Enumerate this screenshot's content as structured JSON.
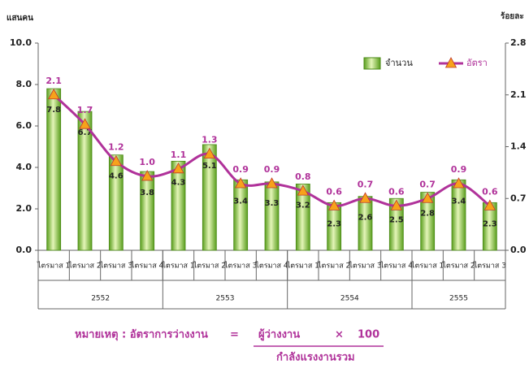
{
  "chart_data": {
    "type": "bar-line",
    "ylabel": "แสนคน",
    "y2label": "ร้อยละ",
    "groups": [
      {
        "name": "2552",
        "categories": [
          "ไตรมาส 1",
          "ไตรมาส 2",
          "ไตรมาส 3",
          "ไตรมาส 4"
        ]
      },
      {
        "name": "2553",
        "categories": [
          "ไตรมาส 1",
          "ไตรมาส 2",
          "ไตรมาส 3",
          "ไตรมาส 4"
        ]
      },
      {
        "name": "2554",
        "categories": [
          "ไตรมาส 1",
          "ไตรมาส 2",
          "ไตรมาส 3",
          "ไตรมาส 4"
        ]
      },
      {
        "name": "2555",
        "categories": [
          "ไตรมาส 1",
          "ไตรมาส 2",
          "ไตรมาส 3"
        ]
      }
    ],
    "series": [
      {
        "name": "จำนวน",
        "type": "bar",
        "color": "#8dc63f",
        "values": [
          7.8,
          6.7,
          4.6,
          3.8,
          4.3,
          5.1,
          3.4,
          3.3,
          3.2,
          2.3,
          2.6,
          2.5,
          2.8,
          3.4,
          2.3
        ]
      },
      {
        "name": "อัตรา",
        "type": "line",
        "axis": "y2",
        "color": "#b0329a",
        "marker_color": "#f7a21b",
        "values": [
          2.1,
          1.7,
          1.2,
          1.0,
          1.1,
          1.3,
          0.9,
          0.9,
          0.8,
          0.6,
          0.7,
          0.6,
          0.7,
          0.9,
          0.6
        ],
        "value_labels": [
          "2.1",
          "1.7",
          "1.2",
          "1.0",
          "1.1",
          "1.3",
          "0.9",
          "0.9",
          "0.8",
          "0.6",
          "0.7",
          "0.6",
          "0.7",
          "0.9",
          "0.6"
        ]
      }
    ],
    "ylim": [
      0,
      10
    ],
    "yticks": [
      {
        "value": 0,
        "label": "0.0"
      },
      {
        "value": 2,
        "label": "2.0"
      },
      {
        "value": 4,
        "label": "4.0"
      },
      {
        "value": 6,
        "label": "6.0"
      },
      {
        "value": 8,
        "label": "8.0"
      },
      {
        "value": 10,
        "label": "10.0"
      }
    ],
    "y2lim": [
      0,
      2.8
    ],
    "y2ticks": [
      {
        "value": 0,
        "label": "0.0"
      },
      0.7,
      1.4,
      2.1,
      2.8
    ],
    "grid": false,
    "legend": "top-right",
    "note": {
      "label": "หมายเหตุ : อัตราการว่างงาน",
      "equals": "=",
      "numerator": "ผู้ว่างงาน",
      "times": "×",
      "factor": 100,
      "denominator": "กำลังแรงงานรวม"
    }
  }
}
